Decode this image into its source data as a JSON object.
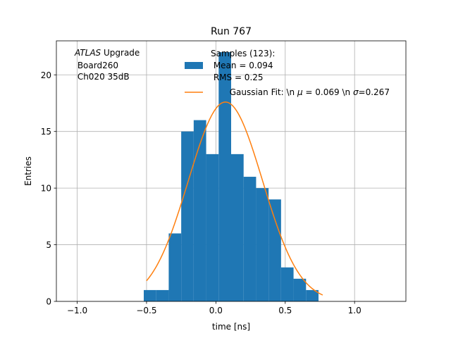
{
  "chart_data": {
    "type": "bar",
    "title": "Run 767",
    "xlabel": "time [ns]",
    "ylabel": "Entries",
    "xlim": [
      -1.15,
      1.37
    ],
    "ylim": [
      0,
      23
    ],
    "grid": true,
    "xticks": [
      -1.0,
      -0.5,
      0.0,
      0.5,
      1.0
    ],
    "xtick_labels": [
      "−1.0",
      "−0.5",
      "0.0",
      "0.5",
      "1.0"
    ],
    "yticks": [
      0,
      5,
      10,
      15,
      20
    ],
    "ytick_labels": [
      "0",
      "5",
      "10",
      "15",
      "20"
    ],
    "histogram": {
      "name": "Samples (123)",
      "color": "#1f77b4",
      "bin_edges": [
        -0.52,
        -0.43,
        -0.34,
        -0.25,
        -0.16,
        -0.07,
        0.02,
        0.11,
        0.2,
        0.29,
        0.38,
        0.47,
        0.56,
        0.65,
        0.74
      ],
      "counts": [
        1,
        1,
        6,
        15,
        16,
        13,
        22,
        13,
        11,
        10,
        9,
        3,
        2,
        1
      ]
    },
    "fit": {
      "name": "Gaussian Fit",
      "color": "#ff7f0e",
      "amplitude": 17.6,
      "mu": 0.069,
      "sigma": 0.267,
      "x_range": [
        -0.5,
        0.77
      ]
    },
    "annotation": {
      "italic": "ATLAS",
      "line1_rest": " Upgrade",
      "line2": " Board260",
      "line3": " Ch020 35dB"
    },
    "legend": {
      "location": "top-center",
      "hist_line1": "Samples (123):",
      "hist_line2": " Mean = 0.094",
      "hist_line3": " RMS = 0.25",
      "fit_label_a": "Gaussian Fit: \\n ",
      "fit_mu_symbol": "μ",
      "fit_label_b": " = 0.069 \\n ",
      "fit_sigma_symbol": "σ",
      "fit_label_c": "=0.267"
    }
  }
}
